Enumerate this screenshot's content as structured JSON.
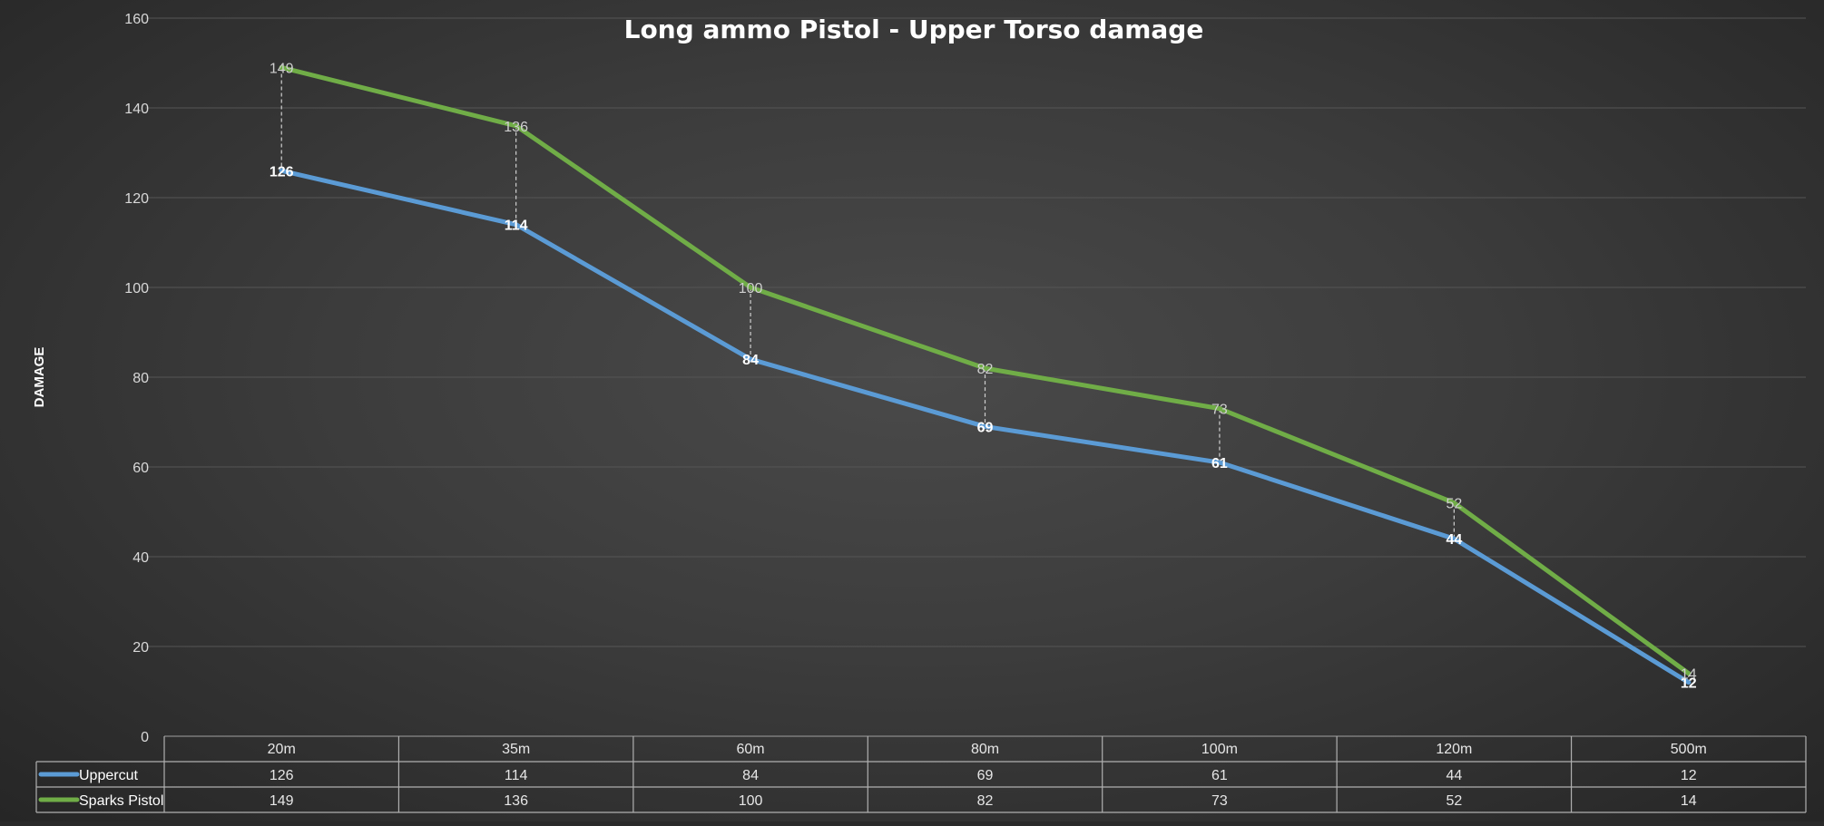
{
  "chart_data": {
    "type": "line",
    "title": "Long ammo Pistol - Upper Torso damage",
    "ylabel": "DAMAGE",
    "xlabel": "",
    "categories": [
      "20m",
      "35m",
      "60m",
      "80m",
      "100m",
      "120m",
      "500m"
    ],
    "ylim": [
      0,
      160
    ],
    "yticks": [
      0,
      20,
      40,
      60,
      80,
      100,
      120,
      140,
      160
    ],
    "grid": true,
    "legend": "data-table-below-chart",
    "series": [
      {
        "name": "Uppercut",
        "values": [
          126,
          114,
          84,
          69,
          61,
          44,
          12
        ],
        "color": "#5b9bd5"
      },
      {
        "name": "Sparks Pistol",
        "values": [
          149,
          136,
          100,
          82,
          73,
          52,
          14
        ],
        "color": "#70ad47"
      }
    ],
    "data_labels": true,
    "drop_lines": true,
    "data_table": true
  }
}
